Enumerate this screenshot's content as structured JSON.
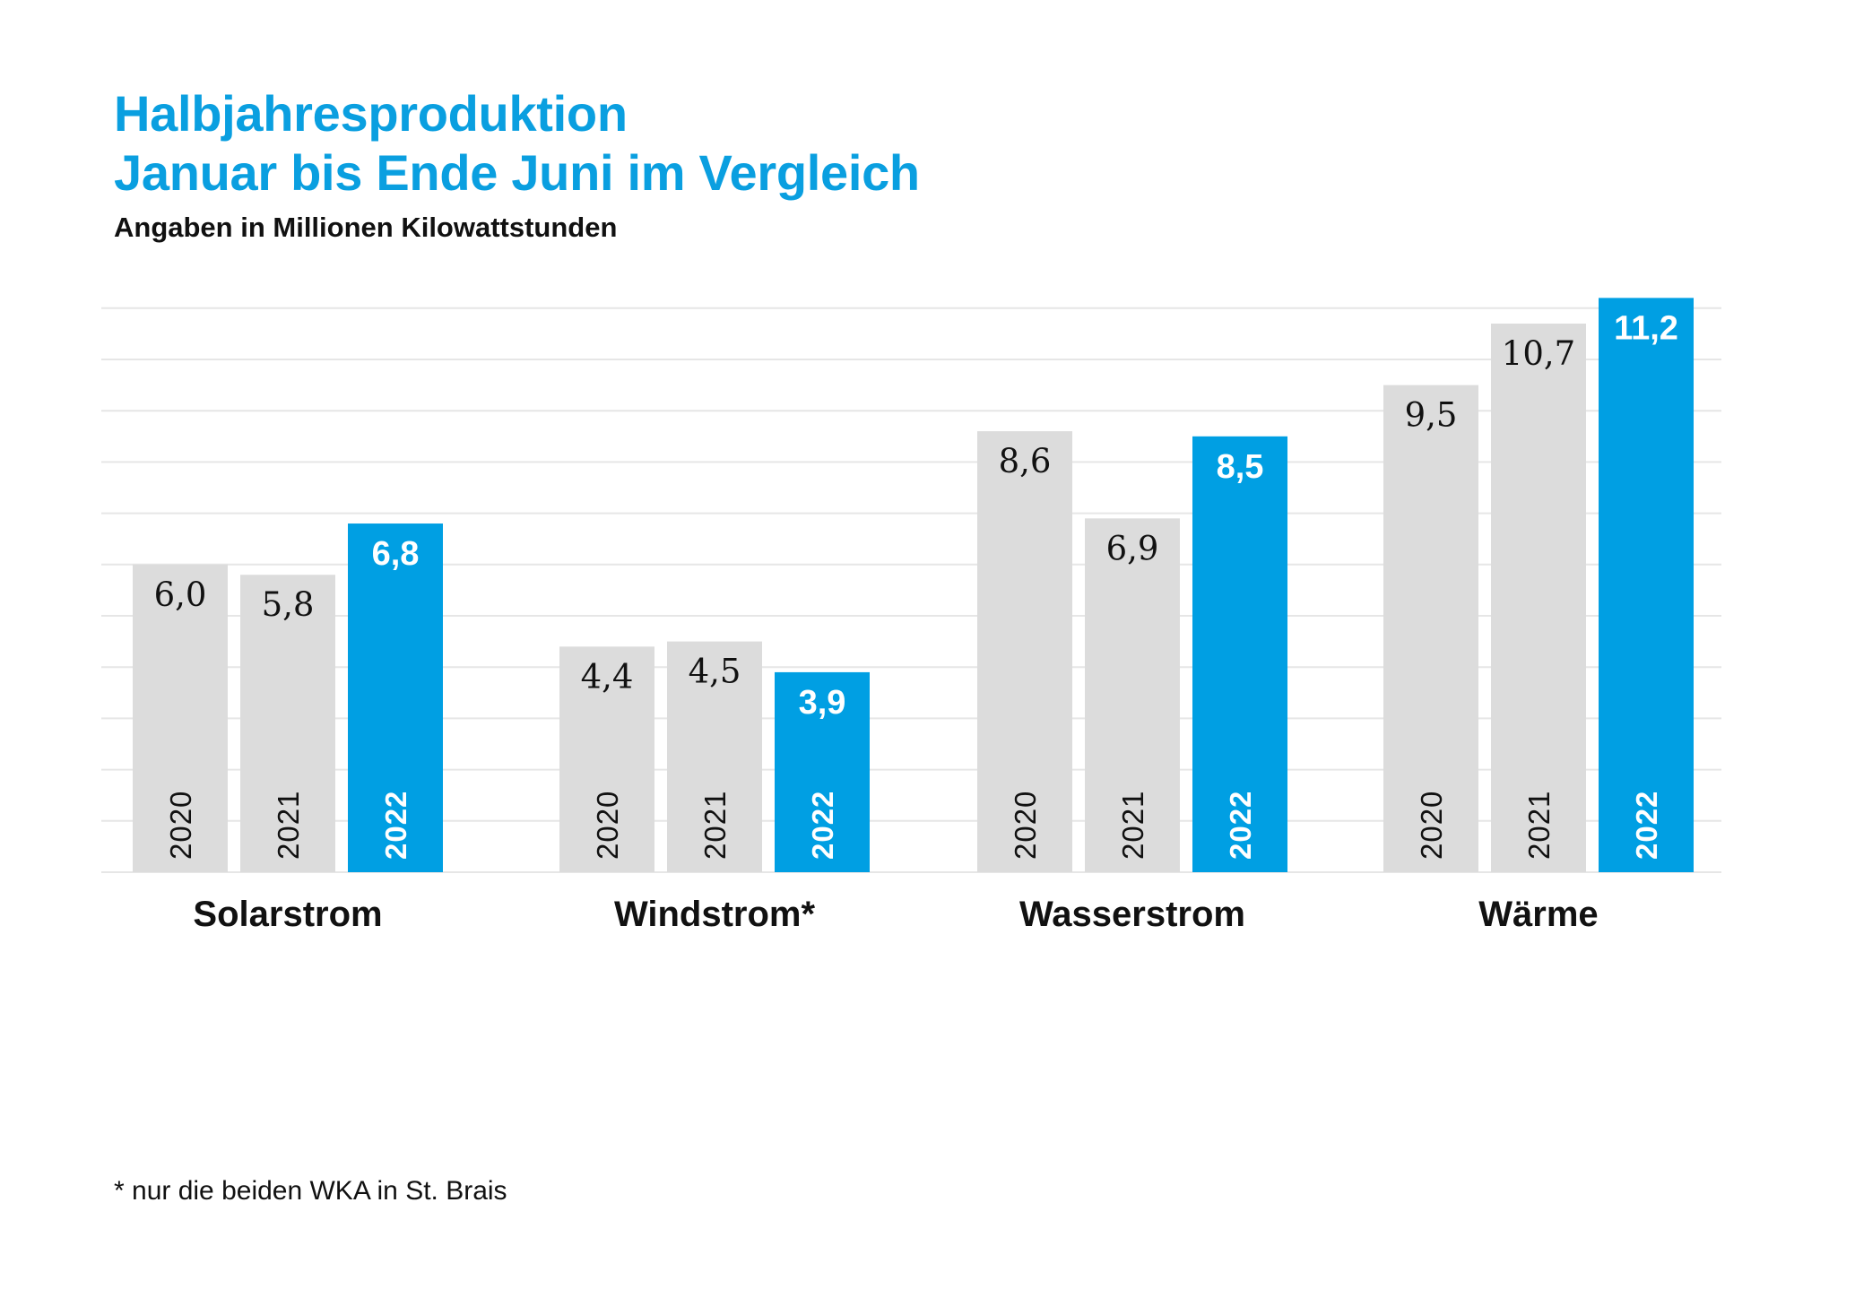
{
  "title_line1": "Halbjahresproduktion",
  "title_line2": "Januar bis Ende Juni im Vergleich",
  "subtitle": "Angaben in Millionen Kilowattstunden",
  "footnote": "* nur die beiden WKA in St. Brais",
  "colors": {
    "accent": "#009fe3",
    "grey": "#dcdcdc",
    "grid": "#e6e6e6",
    "title": "#0a9fe0"
  },
  "chart_data": {
    "type": "bar",
    "categories": [
      "Solarstrom",
      "Windstrom*",
      "Wasserstrom",
      "Wärme"
    ],
    "series": [
      {
        "name": "2020",
        "values": [
          6.0,
          4.4,
          8.6,
          9.5
        ],
        "labels": [
          "6,0",
          "4,4",
          "8,6",
          "9,5"
        ]
      },
      {
        "name": "2021",
        "values": [
          5.8,
          4.5,
          6.9,
          10.7
        ],
        "labels": [
          "5,8",
          "4,5",
          "6,9",
          "10,7"
        ]
      },
      {
        "name": "2022",
        "values": [
          6.8,
          3.9,
          8.5,
          11.2
        ],
        "labels": [
          "6,8",
          "3,9",
          "8,5",
          "11,2"
        ],
        "highlight": true
      }
    ],
    "ylim": [
      0,
      11
    ],
    "grid": true,
    "legend": "none"
  }
}
